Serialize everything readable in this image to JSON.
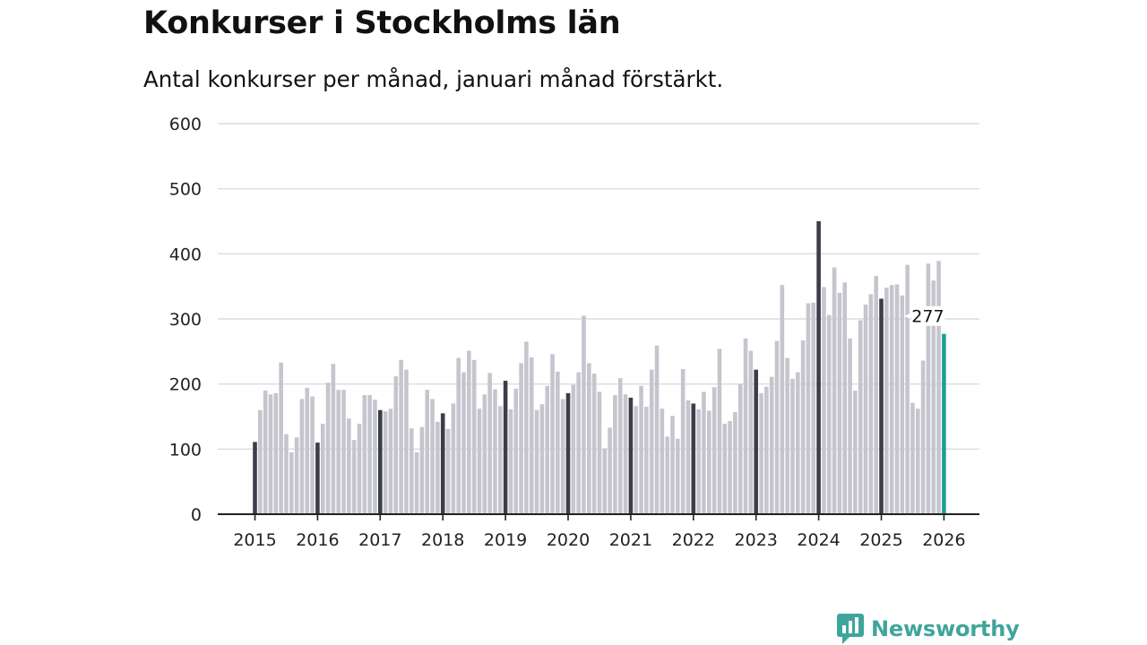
{
  "title": "Konkurser i Stockholms län",
  "subtitle": "Antal konkurser per månad, januari månad förstärkt.",
  "brand": {
    "name": "Newsworthy",
    "color": "#3fa59c",
    "icon": "newsworthy-chart-icon"
  },
  "colors": {
    "regular": "#c5c5ce",
    "january": "#3d3d4a",
    "latest": "#1f9e94",
    "grid": "#dcdce0",
    "axis": "#222222"
  },
  "chart_data": {
    "type": "bar",
    "title": "Konkurser i Stockholms län",
    "subtitle": "Antal konkurser per månad, januari månad förstärkt.",
    "xlabel": "",
    "ylabel": "",
    "ylim": [
      0,
      600
    ],
    "yticks": [
      "0",
      "100",
      "200",
      "300",
      "400",
      "500",
      "600"
    ],
    "xticks": [
      "2015",
      "2016",
      "2017",
      "2018",
      "2019",
      "2020",
      "2021",
      "2022",
      "2023",
      "2024",
      "2025",
      "2026"
    ],
    "start": "2015-01",
    "grid": true,
    "values": [
      111,
      160,
      190,
      184,
      186,
      233,
      123,
      95,
      118,
      177,
      194,
      181,
      110,
      139,
      202,
      231,
      191,
      191,
      147,
      114,
      139,
      183,
      183,
      176,
      160,
      158,
      162,
      212,
      237,
      222,
      132,
      95,
      134,
      191,
      177,
      142,
      155,
      131,
      170,
      240,
      218,
      251,
      237,
      162,
      184,
      217,
      192,
      166,
      205,
      161,
      193,
      232,
      265,
      241,
      160,
      169,
      197,
      246,
      219,
      177,
      186,
      199,
      218,
      305,
      232,
      216,
      188,
      101,
      133,
      183,
      209,
      184,
      179,
      166,
      197,
      165,
      222,
      259,
      162,
      119,
      151,
      116,
      223,
      175,
      170,
      161,
      188,
      159,
      195,
      254,
      139,
      143,
      157,
      200,
      270,
      251,
      222,
      186,
      196,
      211,
      266,
      352,
      240,
      208,
      218,
      267,
      324,
      325,
      450,
      349,
      306,
      379,
      340,
      356,
      270,
      190,
      298,
      322,
      338,
      366,
      331,
      348,
      352,
      353,
      336,
      383,
      171,
      162,
      236,
      385,
      359,
      389,
      277
    ],
    "highlight": {
      "label": "277"
    }
  }
}
